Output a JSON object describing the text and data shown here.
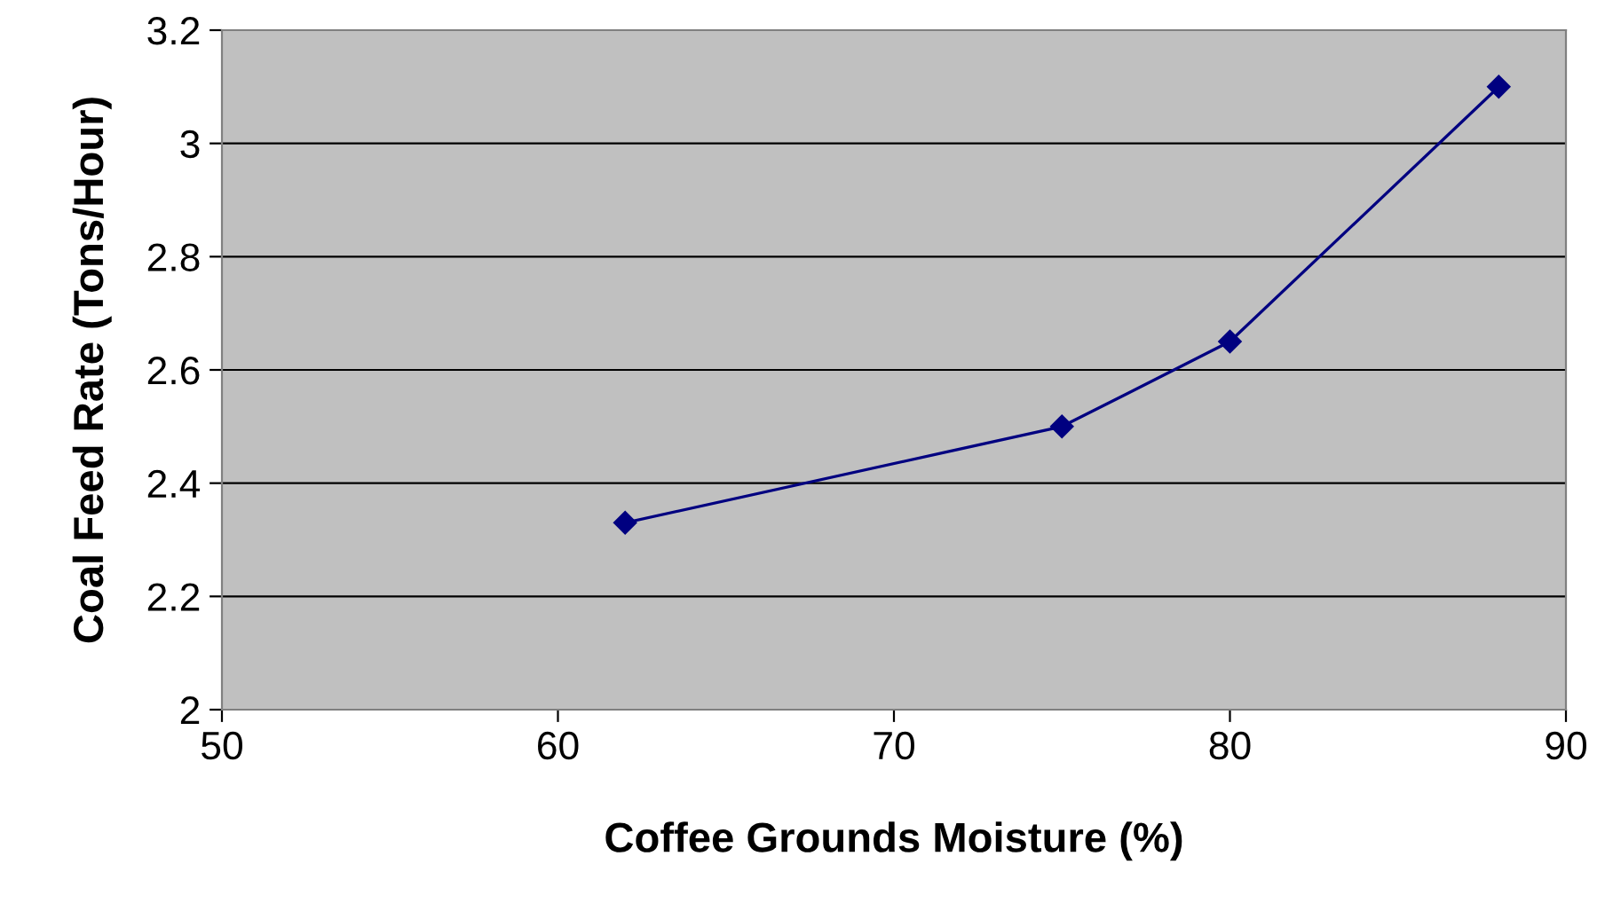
{
  "chart_data": {
    "type": "line",
    "xlabel": "Coffee Grounds Moisture (%)",
    "ylabel": "Coal Feed Rate (Tons/Hour)",
    "x": [
      62,
      75,
      80,
      88
    ],
    "series": [
      {
        "color": "#000080",
        "values": [
          2.33,
          2.5,
          2.65,
          3.1
        ]
      }
    ],
    "xlim": [
      50,
      90
    ],
    "xticks": [
      50,
      60,
      70,
      80,
      90
    ],
    "ylim": [
      2,
      3.2
    ],
    "yticks": [
      2,
      2.2,
      2.4,
      2.6,
      2.8,
      3,
      3.2
    ],
    "grid": "y",
    "marker": "diamond",
    "line_style": "solid",
    "legend": false
  }
}
